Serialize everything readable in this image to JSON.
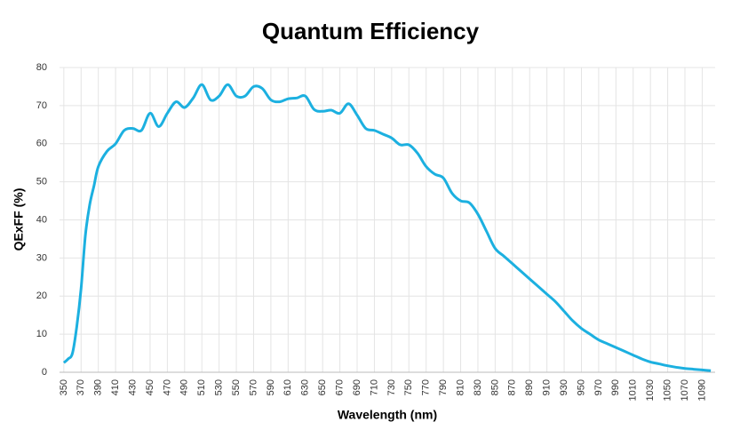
{
  "chart_data": {
    "type": "line",
    "title": "Quantum Efficiency",
    "x_label": "Wavelength (nm)",
    "y_label": "QExFF (%)",
    "x": [
      350,
      355,
      360,
      365,
      370,
      375,
      380,
      385,
      390,
      400,
      410,
      420,
      430,
      440,
      450,
      460,
      470,
      480,
      490,
      500,
      510,
      520,
      530,
      540,
      550,
      560,
      570,
      580,
      590,
      600,
      610,
      620,
      630,
      640,
      650,
      660,
      670,
      680,
      690,
      700,
      710,
      720,
      730,
      740,
      750,
      760,
      770,
      780,
      790,
      800,
      810,
      820,
      830,
      840,
      850,
      860,
      870,
      880,
      890,
      900,
      910,
      920,
      930,
      940,
      950,
      960,
      970,
      980,
      990,
      1000,
      1010,
      1020,
      1030,
      1040,
      1050,
      1060,
      1070,
      1080,
      1090,
      1100
    ],
    "series": [
      {
        "name": "QExFF",
        "color": "#1cb0e0",
        "values": [
          2.5,
          3.5,
          5,
          12,
          22,
          36,
          44,
          49,
          54,
          58,
          60,
          63.5,
          64,
          63.5,
          68,
          64.5,
          68,
          71,
          69.5,
          72,
          75.5,
          71.5,
          72.5,
          75.5,
          72.5,
          72.5,
          75,
          74.5,
          71.5,
          71,
          71.8,
          72,
          72.5,
          69,
          68.5,
          68.8,
          68,
          70.5,
          67.5,
          64,
          63.5,
          62.5,
          61.5,
          59.7,
          59.7,
          57.5,
          54,
          52,
          51,
          47,
          45,
          44.5,
          41.5,
          37,
          32.5,
          30.5,
          28.5,
          26.5,
          24.5,
          22.5,
          20.5,
          18.5,
          16,
          13.5,
          11.5,
          10,
          8.5,
          7.5,
          6.5,
          5.5,
          4.5,
          3.5,
          2.7,
          2.2,
          1.7,
          1.3,
          1,
          0.8,
          0.6,
          0.4
        ]
      }
    ],
    "xlim": [
      345,
      1105
    ],
    "ylim": [
      0,
      80
    ],
    "xticks": [
      350,
      370,
      390,
      410,
      430,
      450,
      470,
      490,
      510,
      530,
      550,
      570,
      590,
      610,
      630,
      650,
      670,
      690,
      710,
      730,
      750,
      770,
      790,
      810,
      830,
      850,
      870,
      890,
      910,
      930,
      950,
      970,
      990,
      1010,
      1030,
      1050,
      1070,
      1090
    ],
    "yticks": [
      0,
      10,
      20,
      30,
      40,
      50,
      60,
      70,
      80
    ],
    "grid": true
  }
}
